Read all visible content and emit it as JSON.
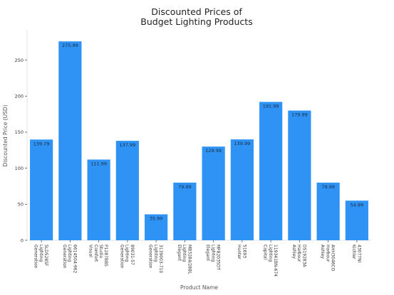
{
  "chart_data": {
    "type": "bar",
    "title": [
      "Discounted Prices of",
      "Budget Lighting Products"
    ],
    "xlabel": "Product Name",
    "ylabel": "Discounted Price (USD)",
    "ylim": [
      0,
      290
    ],
    "yticks": [
      0,
      50,
      100,
      150,
      200,
      250
    ],
    "bar_color": "#2f93f5",
    "grid": false,
    "categories": [
      [
        "Generation",
        "Lighting",
        "5LD528SF"
      ],
      [
        "Generation",
        "Lighting",
        "6614504-962"
      ],
      [
        "Visual",
        "Comfort",
        "Studio",
        "P1287BBS"
      ],
      [
        "Generation",
        "Lighting",
        "89031-57"
      ],
      [
        "Generation",
        "Lighting",
        "3139003-710"
      ],
      [
        "Elegant",
        "Lighting",
        "MB3284/28BL"
      ],
      [
        "Elegant",
        "Lighting",
        "MF82035DT"
      ],
      [
        "Hunter",
        "51693"
      ],
      [
        "Capital",
        "Lighting",
        "119341BN-674"
      ],
      [
        "Ashley",
        "Harbour",
        "DS19283A"
      ],
      [
        "Ashley",
        "Harbour",
        "AHH3046CO"
      ],
      [
        "Kichler",
        "43077NI"
      ]
    ],
    "values": [
      139.79,
      275.99,
      111.99,
      137.99,
      35.99,
      79.99,
      129.99,
      139.99,
      191.99,
      179.99,
      79.99,
      54.99
    ],
    "value_labels": [
      "139.79",
      "275.99",
      "111.99",
      "137.99",
      "35.99",
      "79.99",
      "129.99",
      "139.99",
      "191.99",
      "179.99",
      "79.99",
      "54.99"
    ]
  }
}
